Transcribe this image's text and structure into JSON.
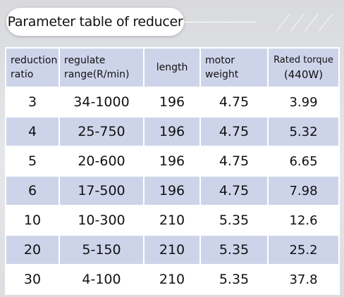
{
  "title": "Parameter table of reducer",
  "table": {
    "headers": [
      [
        "reduction",
        "ratio"
      ],
      [
        "regulate",
        "range(R/min)"
      ],
      [
        "length"
      ],
      [
        "motor",
        "weight"
      ],
      [
        "Rated torque",
        "(440W)"
      ]
    ],
    "rows": [
      [
        "3",
        "34-1000",
        "196",
        "4.75",
        "3.99"
      ],
      [
        "4",
        "25-750",
        "196",
        "4.75",
        "5.32"
      ],
      [
        "5",
        "20-600",
        "196",
        "4.75",
        "6.65"
      ],
      [
        "6",
        "17-500",
        "196",
        "4.75",
        "7.98"
      ],
      [
        "10",
        "10-300",
        "210",
        "5.35",
        "12.6"
      ],
      [
        "20",
        "5-150",
        "210",
        "5.35",
        "25.2"
      ],
      [
        "30",
        "4-100",
        "210",
        "5.35",
        "37.8"
      ]
    ]
  },
  "colors": {
    "band": "#cdd4ea",
    "background": "#e2e3e6"
  }
}
